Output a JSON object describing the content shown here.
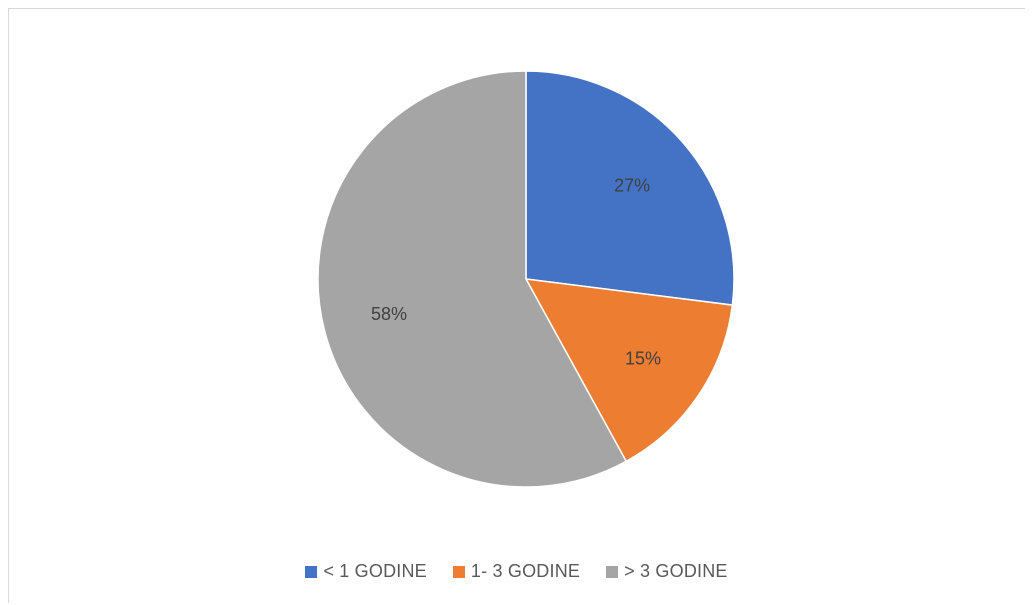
{
  "chart_data": {
    "type": "pie",
    "title": "",
    "categories": [
      "< 1 GODINE",
      "1- 3 GODINE",
      "> 3 GODINE"
    ],
    "values": [
      27,
      15,
      58
    ],
    "value_labels": [
      "27%",
      "15%",
      "58%"
    ],
    "colors": [
      "#4472c4",
      "#ed7d31",
      "#a5a5a5"
    ],
    "legend_position": "bottom",
    "start_angle": "12 o'clock, clockwise"
  }
}
